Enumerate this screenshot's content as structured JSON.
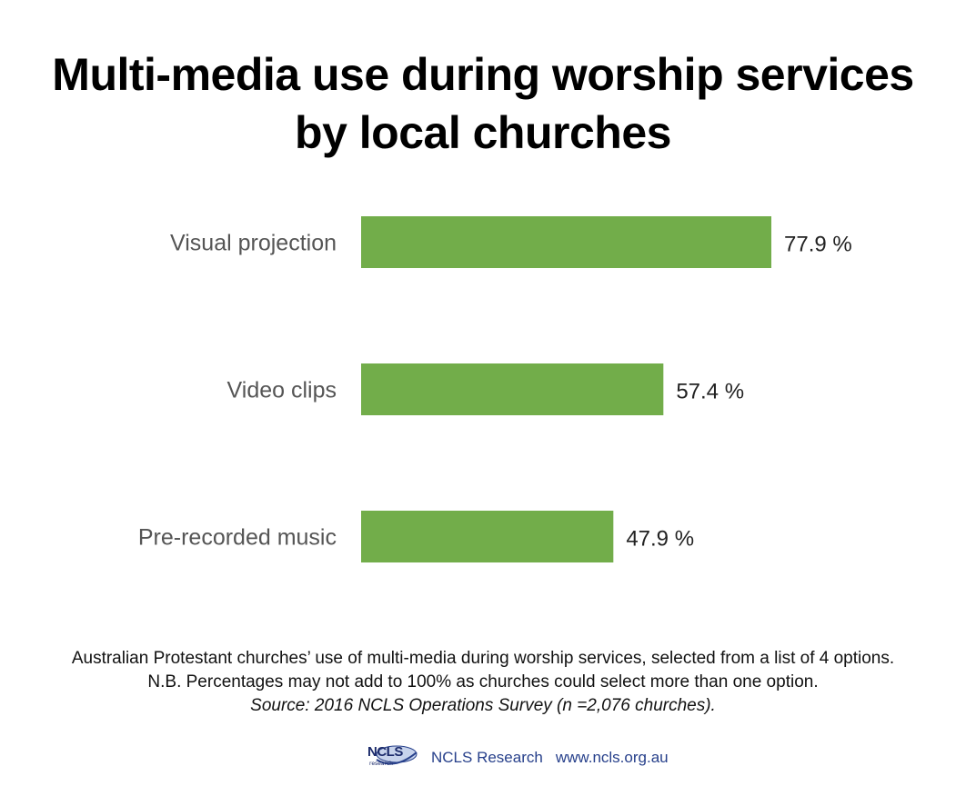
{
  "title_lines": [
    "Multi-media use during worship services",
    "by local churches"
  ],
  "chart_data": {
    "type": "bar",
    "orientation": "horizontal",
    "title": "Multi-media use during worship services by local churches",
    "categories": [
      "Visual projection",
      "Video clips",
      "Pre-recorded music"
    ],
    "values": [
      77.9,
      57.4,
      47.9
    ],
    "value_labels": [
      "77.9 %",
      "57.4 %",
      "47.9 %"
    ],
    "unit": "%",
    "xlim": [
      0,
      100
    ],
    "grid": false,
    "bar_color": "#72ad4a"
  },
  "footnote": {
    "line1": "Australian Protestant churches’ use of multi-media during worship services, selected from a list of 4 options.",
    "line2": "N.B. Percentages may not add to 100% as churches could select more than one option.",
    "source": "Source: 2016 NCLS Operations Survey (n =2,076 churches)."
  },
  "footer": {
    "logo_text": "NCLS",
    "logo_subtext": "research",
    "brand": "NCLS Research",
    "website": "www.ncls.org.au"
  },
  "colors": {
    "bar": "#72ad4a",
    "brand_blue": "#27408b",
    "category_text": "#555555"
  }
}
